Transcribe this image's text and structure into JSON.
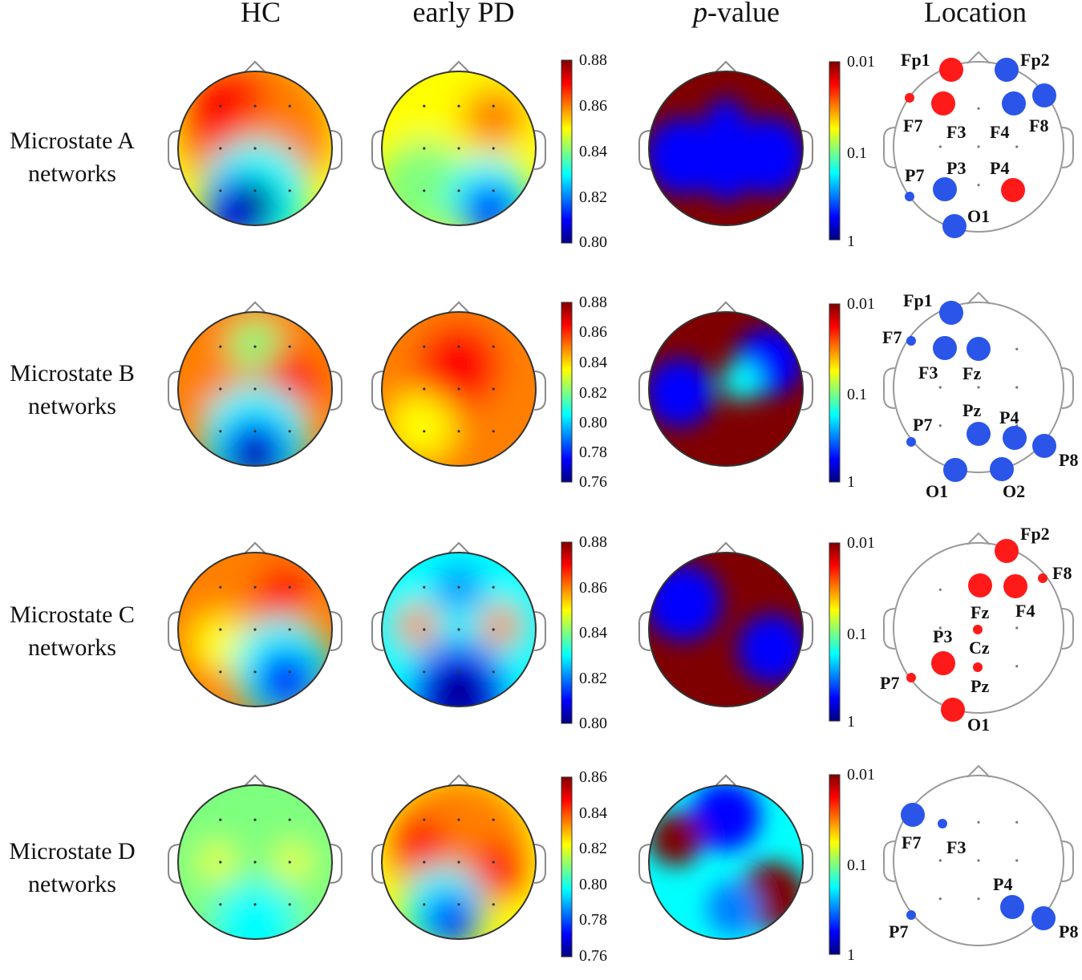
{
  "columns": {
    "hc": "HC",
    "pd": "early PD",
    "p_italic": "p",
    "p_rest": "-value",
    "location": "Location"
  },
  "colors": {
    "sig_increase": "#ff1a1a",
    "sig_decrease": "#2a55e8",
    "cmap": [
      "#00007f",
      "#0000ff",
      "#007fff",
      "#00ffff",
      "#7fff7f",
      "#ffff00",
      "#ff7f00",
      "#ff0000",
      "#7f0000"
    ]
  },
  "rows": [
    {
      "label_line1": "Microstate A",
      "label_line2": "networks",
      "corr_ticks": [
        "0.88",
        "0.86",
        "0.84",
        "0.82",
        "0.80"
      ],
      "p_ticks": [
        "0.01",
        "0.1",
        "1"
      ],
      "electrodes": [
        {
          "name": "Fp1",
          "sign": "red",
          "size": "large"
        },
        {
          "name": "Fp2",
          "sign": "blue",
          "size": "large"
        },
        {
          "name": "F7",
          "sign": "red",
          "size": "small"
        },
        {
          "name": "F3",
          "sign": "red",
          "size": "large"
        },
        {
          "name": "F4",
          "sign": "blue",
          "size": "large"
        },
        {
          "name": "F8",
          "sign": "blue",
          "size": "large"
        },
        {
          "name": "P7",
          "sign": "blue",
          "size": "small"
        },
        {
          "name": "P3",
          "sign": "blue",
          "size": "large"
        },
        {
          "name": "P4",
          "sign": "red",
          "size": "large"
        },
        {
          "name": "O1",
          "sign": "blue",
          "size": "large"
        }
      ]
    },
    {
      "label_line1": "Microstate B",
      "label_line2": "networks",
      "corr_ticks": [
        "0.88",
        "0.86",
        "0.84",
        "0.82",
        "0.80",
        "0.78",
        "0.76"
      ],
      "p_ticks": [
        "0.01",
        "0.1",
        "1"
      ],
      "electrodes": [
        {
          "name": "Fp1",
          "sign": "blue",
          "size": "large"
        },
        {
          "name": "F7",
          "sign": "blue",
          "size": "small"
        },
        {
          "name": "F3",
          "sign": "blue",
          "size": "large"
        },
        {
          "name": "Fz",
          "sign": "blue",
          "size": "large"
        },
        {
          "name": "P7",
          "sign": "blue",
          "size": "small"
        },
        {
          "name": "Pz",
          "sign": "blue",
          "size": "large"
        },
        {
          "name": "P4",
          "sign": "blue",
          "size": "large"
        },
        {
          "name": "P8",
          "sign": "blue",
          "size": "large"
        },
        {
          "name": "O1",
          "sign": "blue",
          "size": "large"
        },
        {
          "name": "O2",
          "sign": "blue",
          "size": "large"
        }
      ]
    },
    {
      "label_line1": "Microstate C",
      "label_line2": "networks",
      "corr_ticks": [
        "0.88",
        "0.86",
        "0.84",
        "0.82",
        "0.80"
      ],
      "p_ticks": [
        "0.01",
        "0.1",
        "1"
      ],
      "electrodes": [
        {
          "name": "Fp2",
          "sign": "red",
          "size": "large"
        },
        {
          "name": "F8",
          "sign": "red",
          "size": "small"
        },
        {
          "name": "Fz",
          "sign": "red",
          "size": "large"
        },
        {
          "name": "F4",
          "sign": "red",
          "size": "large"
        },
        {
          "name": "P3",
          "sign": "red",
          "size": "large"
        },
        {
          "name": "Cz",
          "sign": "red",
          "size": "small"
        },
        {
          "name": "Pz",
          "sign": "red",
          "size": "small"
        },
        {
          "name": "P7",
          "sign": "red",
          "size": "small"
        },
        {
          "name": "O1",
          "sign": "red",
          "size": "large"
        }
      ]
    },
    {
      "label_line1": "Microstate D",
      "label_line2": "networks",
      "corr_ticks": [
        "0.86",
        "0.84",
        "0.82",
        "0.80",
        "0.78",
        "0.76"
      ],
      "p_ticks": [
        "0.01",
        "0.1",
        "1"
      ],
      "electrodes": [
        {
          "name": "F7",
          "sign": "blue",
          "size": "large"
        },
        {
          "name": "F3",
          "sign": "blue",
          "size": "small"
        },
        {
          "name": "P4",
          "sign": "blue",
          "size": "large"
        },
        {
          "name": "P7",
          "sign": "blue",
          "size": "small"
        },
        {
          "name": "P8",
          "sign": "blue",
          "size": "large"
        }
      ]
    }
  ]
}
